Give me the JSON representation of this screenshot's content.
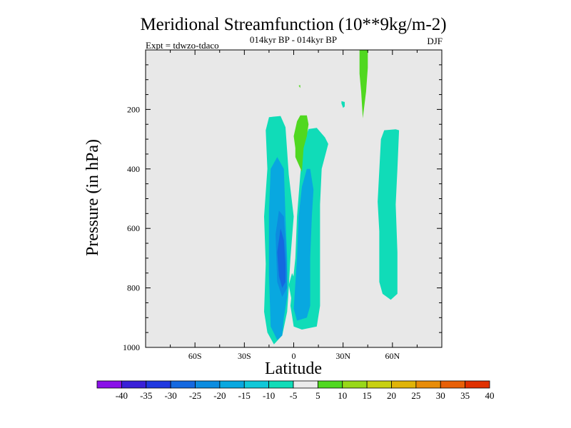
{
  "chart_data": {
    "type": "heatmap",
    "title": "Meridional Streamfunction (10**9kg/m-2)",
    "subtitle": "014kyr BP - 014kyr BP",
    "left_annotation": "Expt = tdwzo-tdaco",
    "right_annotation": "DJF",
    "xlabel": "Latitude",
    "ylabel": "Pressure (in hPa)",
    "xlim": [
      -90,
      90
    ],
    "ylim": [
      0,
      1000
    ],
    "y_inverted": true,
    "x_ticks": [
      {
        "value": -60,
        "label": "60S"
      },
      {
        "value": -30,
        "label": "30S"
      },
      {
        "value": 0,
        "label": "0"
      },
      {
        "value": 30,
        "label": "30N"
      },
      {
        "value": 60,
        "label": "60N"
      }
    ],
    "y_ticks": [
      {
        "value": 200,
        "label": "200"
      },
      {
        "value": 400,
        "label": "400"
      },
      {
        "value": 600,
        "label": "600"
      },
      {
        "value": 800,
        "label": "800"
      },
      {
        "value": 1000,
        "label": "1000"
      }
    ],
    "background_color": "#e8e8e8",
    "colorbar": {
      "levels": [
        "-40",
        "-35",
        "-30",
        "-25",
        "-20",
        "-15",
        "-10",
        "-5",
        "5",
        "10",
        "15",
        "20",
        "25",
        "30",
        "35",
        "40"
      ],
      "colors": [
        "#8a10e8",
        "#3a20d8",
        "#2038e0",
        "#1468e0",
        "#0c8ce0",
        "#08a8e0",
        "#10c8d8",
        "#10dcb8",
        "#ebebeb",
        "#50d820",
        "#98d818",
        "#c8d010",
        "#e0b408",
        "#e88c08",
        "#e86008",
        "#e03000"
      ]
    },
    "regions": [
      {
        "level": -10,
        "color": "#10dcb8",
        "points": [
          [
            -12,
            990
          ],
          [
            -16,
            950
          ],
          [
            -18,
            880
          ],
          [
            -17,
            720
          ],
          [
            -18,
            560
          ],
          [
            -16,
            400
          ],
          [
            -17,
            270
          ],
          [
            -15,
            226
          ],
          [
            -8,
            222
          ],
          [
            -5,
            260
          ],
          [
            -3,
            420
          ],
          [
            0,
            560
          ],
          [
            -2,
            700
          ],
          [
            -3,
            800
          ],
          [
            -4,
            880
          ],
          [
            -7,
            960
          ]
        ]
      },
      {
        "level": -10,
        "color": "#10dcb8",
        "points": [
          [
            5,
            940
          ],
          [
            0,
            930
          ],
          [
            -2,
            860
          ],
          [
            1,
            700
          ],
          [
            2,
            560
          ],
          [
            4,
            420
          ],
          [
            6,
            310
          ],
          [
            9,
            266
          ],
          [
            14,
            262
          ],
          [
            19,
            294
          ],
          [
            21,
            316
          ],
          [
            17,
            400
          ],
          [
            16,
            520
          ],
          [
            16,
            700
          ],
          [
            16,
            860
          ],
          [
            14,
            930
          ]
        ]
      },
      {
        "level": -10,
        "color": "#10dcb8",
        "points": [
          [
            -1,
            850
          ],
          [
            -3,
            790
          ],
          [
            -1,
            750
          ],
          [
            2,
            790
          ],
          [
            0,
            845
          ]
        ]
      },
      {
        "level": -10,
        "color": "#10dcb8",
        "points": [
          [
            59,
            840
          ],
          [
            54,
            820
          ],
          [
            52,
            780
          ],
          [
            52,
            610
          ],
          [
            51,
            510
          ],
          [
            53,
            300
          ],
          [
            55,
            270
          ],
          [
            62,
            267
          ],
          [
            64,
            270
          ],
          [
            63,
            400
          ],
          [
            62,
            520
          ],
          [
            63,
            680
          ],
          [
            63,
            820
          ]
        ]
      },
      {
        "level": -10,
        "color": "#10dcb8",
        "points": [
          [
            29,
            172
          ],
          [
            29,
            180
          ],
          [
            30,
            195
          ],
          [
            31,
            190
          ],
          [
            31,
            175
          ]
        ]
      },
      {
        "level": -15,
        "color": "#08a8e0",
        "points": [
          [
            -10,
            975
          ],
          [
            -14,
            930
          ],
          [
            -15,
            760
          ],
          [
            -15,
            540
          ],
          [
            -14,
            400
          ],
          [
            -10,
            360
          ],
          [
            -6,
            400
          ],
          [
            -5,
            560
          ],
          [
            -4,
            700
          ],
          [
            -4,
            830
          ],
          [
            -6,
            900
          ],
          [
            -7,
            960
          ]
        ]
      },
      {
        "level": -15,
        "color": "#08a8e0",
        "points": [
          [
            2,
            910
          ],
          [
            0,
            870
          ],
          [
            2,
            700
          ],
          [
            3,
            560
          ],
          [
            5,
            460
          ],
          [
            8,
            400
          ],
          [
            10,
            400
          ],
          [
            12,
            470
          ],
          [
            11,
            560
          ],
          [
            10,
            700
          ],
          [
            10,
            860
          ],
          [
            8,
            900
          ]
        ]
      },
      {
        "level": -20,
        "color": "#0c8ce0",
        "points": [
          [
            -7,
            830
          ],
          [
            -10,
            780
          ],
          [
            -11,
            620
          ],
          [
            -9,
            540
          ],
          [
            -6,
            560
          ],
          [
            -5,
            640
          ],
          [
            -4,
            750
          ],
          [
            -4,
            800
          ]
        ]
      },
      {
        "level": -25,
        "color": "#1468e0",
        "points": [
          [
            -7,
            800
          ],
          [
            -9,
            760
          ],
          [
            -10,
            680
          ],
          [
            -8,
            600
          ],
          [
            -6,
            640
          ],
          [
            -5,
            720
          ],
          [
            -5,
            780
          ]
        ]
      },
      {
        "level": 10,
        "color": "#50d820",
        "points": [
          [
            40,
            -2
          ],
          [
            40,
            80
          ],
          [
            41,
            140
          ],
          [
            42,
            230
          ],
          [
            44,
            140
          ],
          [
            45,
            60
          ],
          [
            45,
            -2
          ]
        ]
      },
      {
        "level": 10,
        "color": "#50d820",
        "points": [
          [
            5,
            410
          ],
          [
            1,
            360
          ],
          [
            1,
            330
          ],
          [
            0,
            290
          ],
          [
            2,
            240
          ],
          [
            4,
            220
          ],
          [
            8,
            220
          ],
          [
            9,
            250
          ],
          [
            8,
            290
          ],
          [
            6,
            330
          ]
        ]
      },
      {
        "level": 10,
        "color": "#50d820",
        "points": [
          [
            3,
            120
          ],
          [
            4,
            118
          ],
          [
            4,
            128
          ]
        ]
      }
    ]
  }
}
